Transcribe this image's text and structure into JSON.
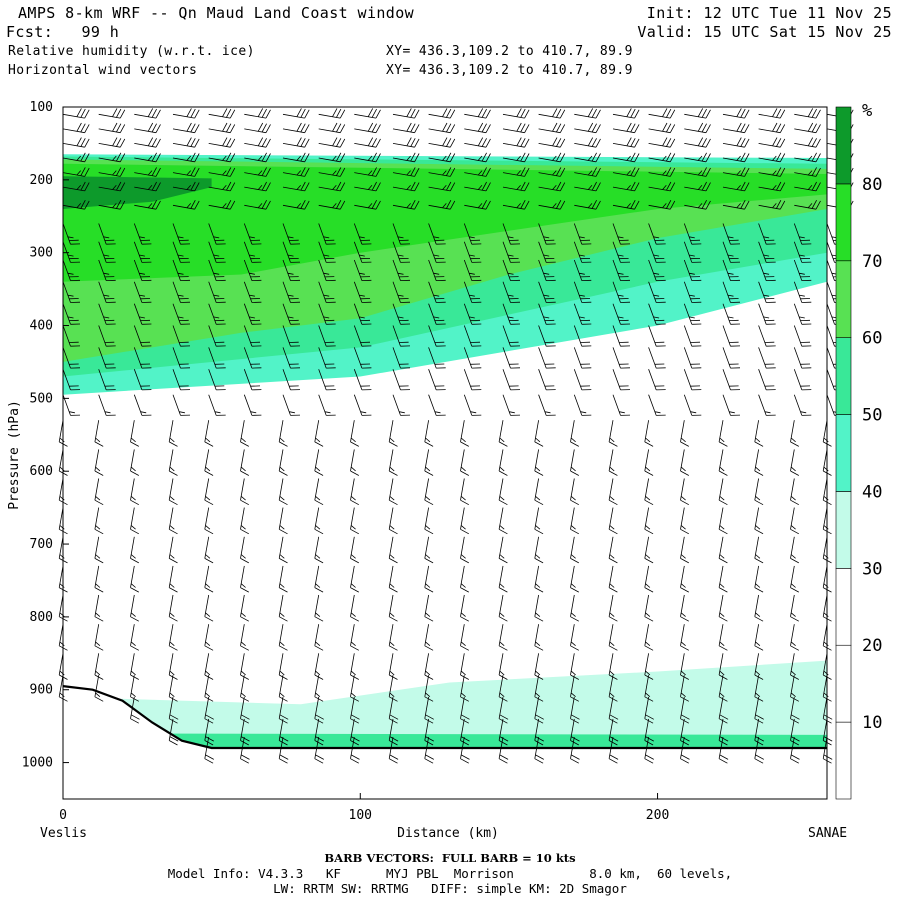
{
  "header": {
    "title": "AMPS 8-km WRF -- Qn Maud Land Coast window",
    "init": "Init: 12 UTC Tue 11 Nov 25",
    "fcst": "Fcst:   99 h",
    "valid": "Valid: 15 UTC Sat 15 Nov 25",
    "field1": "Relative humidity (w.r.t. ice)",
    "field1_xy": "XY= 436.3,109.2 to 410.7, 89.9",
    "field2": "Horizontal wind vectors",
    "field2_xy": "XY= 436.3,109.2 to 410.7, 89.9"
  },
  "footer": {
    "barb": "BARB VECTORS:  FULL BARB = 10 kts",
    "model_info": "Model Info: V4.3.3   KF      MYJ PBL  Morrison          8.0 km,  60 levels,",
    "physics": "LW: RRTM SW: RRTMG   DIFF: simple KM: 2D Smagor"
  },
  "colors": {
    "c0": "#ffffff",
    "c30": "#c3fbe9",
    "c40": "#52f3c8",
    "c50": "#39e898",
    "c60": "#58e153",
    "c70": "#27de27",
    "c80": "#0d9a2b",
    "terrain": "#000000"
  },
  "chart_data": {
    "type": "cross-section contour with wind barbs",
    "title": "Relative humidity (w.r.t. ice) and horizontal wind vectors",
    "xlabel": "Distance (km)",
    "ylabel": "Pressure (hPa)",
    "xlim": [
      0,
      257
    ],
    "ylim": [
      1050,
      100
    ],
    "x_ticks": [
      0,
      100,
      200
    ],
    "y_ticks": [
      100,
      200,
      300,
      400,
      500,
      600,
      700,
      800,
      900,
      1000
    ],
    "left_endpoint": "Veslis",
    "right_endpoint": "SANAE",
    "colorbar": {
      "unit": "%",
      "levels": [
        10,
        20,
        30,
        40,
        50,
        60,
        70,
        80
      ],
      "labels": [
        "10",
        "20",
        "30",
        "40",
        "50",
        "60",
        "70",
        "80"
      ]
    },
    "rh_layers": [
      {
        "rh": 40,
        "top": [
          [
            0,
            165
          ],
          [
            257,
            170
          ]
        ],
        "bottom": [
          [
            0,
            495
          ],
          [
            100,
            470
          ],
          [
            200,
            400
          ],
          [
            257,
            340
          ]
        ]
      },
      {
        "rh": 50,
        "top": [
          [
            0,
            168
          ],
          [
            257,
            178
          ]
        ],
        "bottom": [
          [
            0,
            470
          ],
          [
            100,
            430
          ],
          [
            200,
            340
          ],
          [
            257,
            300
          ]
        ]
      },
      {
        "rh": 60,
        "top": [
          [
            0,
            172
          ],
          [
            257,
            185
          ]
        ],
        "bottom": [
          [
            0,
            450
          ],
          [
            60,
            410
          ],
          [
            100,
            390
          ],
          [
            150,
            330
          ],
          [
            200,
            280
          ],
          [
            257,
            240
          ]
        ]
      },
      {
        "rh": 70,
        "top": [
          [
            0,
            178
          ],
          [
            257,
            192
          ]
        ],
        "bottom": [
          [
            0,
            340
          ],
          [
            60,
            330
          ],
          [
            100,
            300
          ],
          [
            150,
            270
          ],
          [
            200,
            240
          ],
          [
            257,
            220
          ]
        ]
      },
      {
        "rh": 80,
        "top": [
          [
            0,
            195
          ],
          [
            50,
            198
          ]
        ],
        "bottom": [
          [
            0,
            240
          ],
          [
            30,
            230
          ],
          [
            50,
            210
          ]
        ]
      },
      {
        "rh": 30,
        "top": [
          [
            0,
            910
          ],
          [
            80,
            920
          ],
          [
            130,
            890
          ],
          [
            200,
            875
          ],
          [
            257,
            860
          ]
        ],
        "bottom": [
          [
            0,
            975
          ],
          [
            257,
            975
          ]
        ]
      },
      {
        "rh": 50,
        "top": [
          [
            0,
            960
          ],
          [
            257,
            962
          ]
        ],
        "bottom": [
          [
            0,
            985
          ],
          [
            257,
            985
          ]
        ]
      }
    ],
    "terrain_surface_hpa": [
      [
        0,
        895
      ],
      [
        10,
        900
      ],
      [
        20,
        915
      ],
      [
        30,
        945
      ],
      [
        40,
        970
      ],
      [
        50,
        980
      ],
      [
        257,
        980
      ]
    ],
    "barb_columns_km": [
      0,
      12,
      24,
      37,
      49,
      61,
      74,
      86,
      98,
      111,
      123,
      135,
      148,
      160,
      172,
      185,
      197,
      209,
      222,
      234,
      246,
      257
    ],
    "barb_levels_hpa": [
      110,
      130,
      150,
      170,
      190,
      210,
      235,
      260,
      285,
      310,
      340,
      370,
      400,
      430,
      460,
      495,
      530,
      570,
      610,
      650,
      690,
      730,
      770,
      810,
      850,
      880,
      910,
      940,
      965
    ],
    "barb_speed_kts_by_level": [
      30,
      30,
      30,
      25,
      25,
      25,
      25,
      25,
      25,
      25,
      25,
      25,
      20,
      20,
      20,
      15,
      15,
      15,
      15,
      15,
      15,
      15,
      15,
      15,
      15,
      15,
      20,
      20,
      20
    ]
  }
}
